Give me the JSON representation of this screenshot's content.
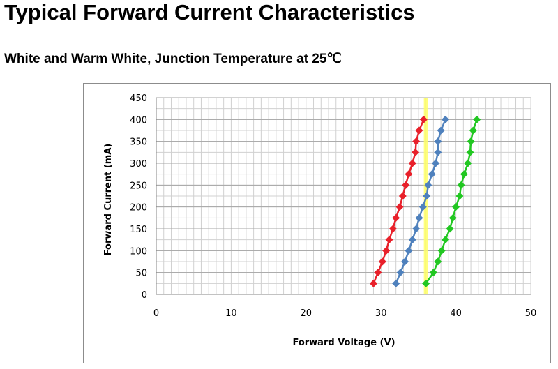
{
  "title": "Typical Forward Current Characteristics",
  "subtitle": "White and Warm White, Junction Temperature at 25℃",
  "chart_data": {
    "type": "scatter",
    "xlabel": "Forward Voltage (V)",
    "ylabel": "Forward Current (mA)",
    "xlim": [
      0,
      50
    ],
    "ylim": [
      0,
      450
    ],
    "xticks": [
      0,
      10,
      20,
      30,
      40,
      50
    ],
    "yticks": [
      0,
      50,
      100,
      150,
      200,
      250,
      300,
      350,
      400,
      450
    ],
    "grid": true,
    "marker": "diamond",
    "highlight_band": {
      "x": 36,
      "color": "#ffff66"
    },
    "series": [
      {
        "color": "#e8202a",
        "points": [
          [
            29.0,
            25
          ],
          [
            29.6,
            50
          ],
          [
            30.2,
            75
          ],
          [
            30.7,
            100
          ],
          [
            31.1,
            125
          ],
          [
            31.6,
            150
          ],
          [
            32.0,
            175
          ],
          [
            32.5,
            200
          ],
          [
            32.9,
            225
          ],
          [
            33.3,
            250
          ],
          [
            33.7,
            275
          ],
          [
            34.2,
            300
          ],
          [
            34.6,
            325
          ],
          [
            34.7,
            350
          ],
          [
            35.1,
            375
          ],
          [
            35.7,
            400
          ]
        ]
      },
      {
        "color": "#4f81bd",
        "points": [
          [
            32.0,
            25
          ],
          [
            32.6,
            50
          ],
          [
            33.2,
            75
          ],
          [
            33.7,
            100
          ],
          [
            34.2,
            125
          ],
          [
            34.7,
            150
          ],
          [
            35.1,
            175
          ],
          [
            35.6,
            200
          ],
          [
            36.1,
            225
          ],
          [
            36.3,
            250
          ],
          [
            36.8,
            275
          ],
          [
            37.3,
            300
          ],
          [
            37.6,
            325
          ],
          [
            37.6,
            350
          ],
          [
            38.0,
            375
          ],
          [
            38.6,
            400
          ]
        ]
      },
      {
        "color": "#22c722",
        "points": [
          [
            36.0,
            25
          ],
          [
            37.0,
            50
          ],
          [
            37.6,
            75
          ],
          [
            38.1,
            100
          ],
          [
            38.6,
            125
          ],
          [
            39.2,
            150
          ],
          [
            39.6,
            175
          ],
          [
            40.0,
            200
          ],
          [
            40.5,
            225
          ],
          [
            40.7,
            250
          ],
          [
            41.1,
            275
          ],
          [
            41.6,
            300
          ],
          [
            41.9,
            325
          ],
          [
            42.0,
            350
          ],
          [
            42.3,
            375
          ],
          [
            42.8,
            400
          ]
        ]
      }
    ]
  }
}
